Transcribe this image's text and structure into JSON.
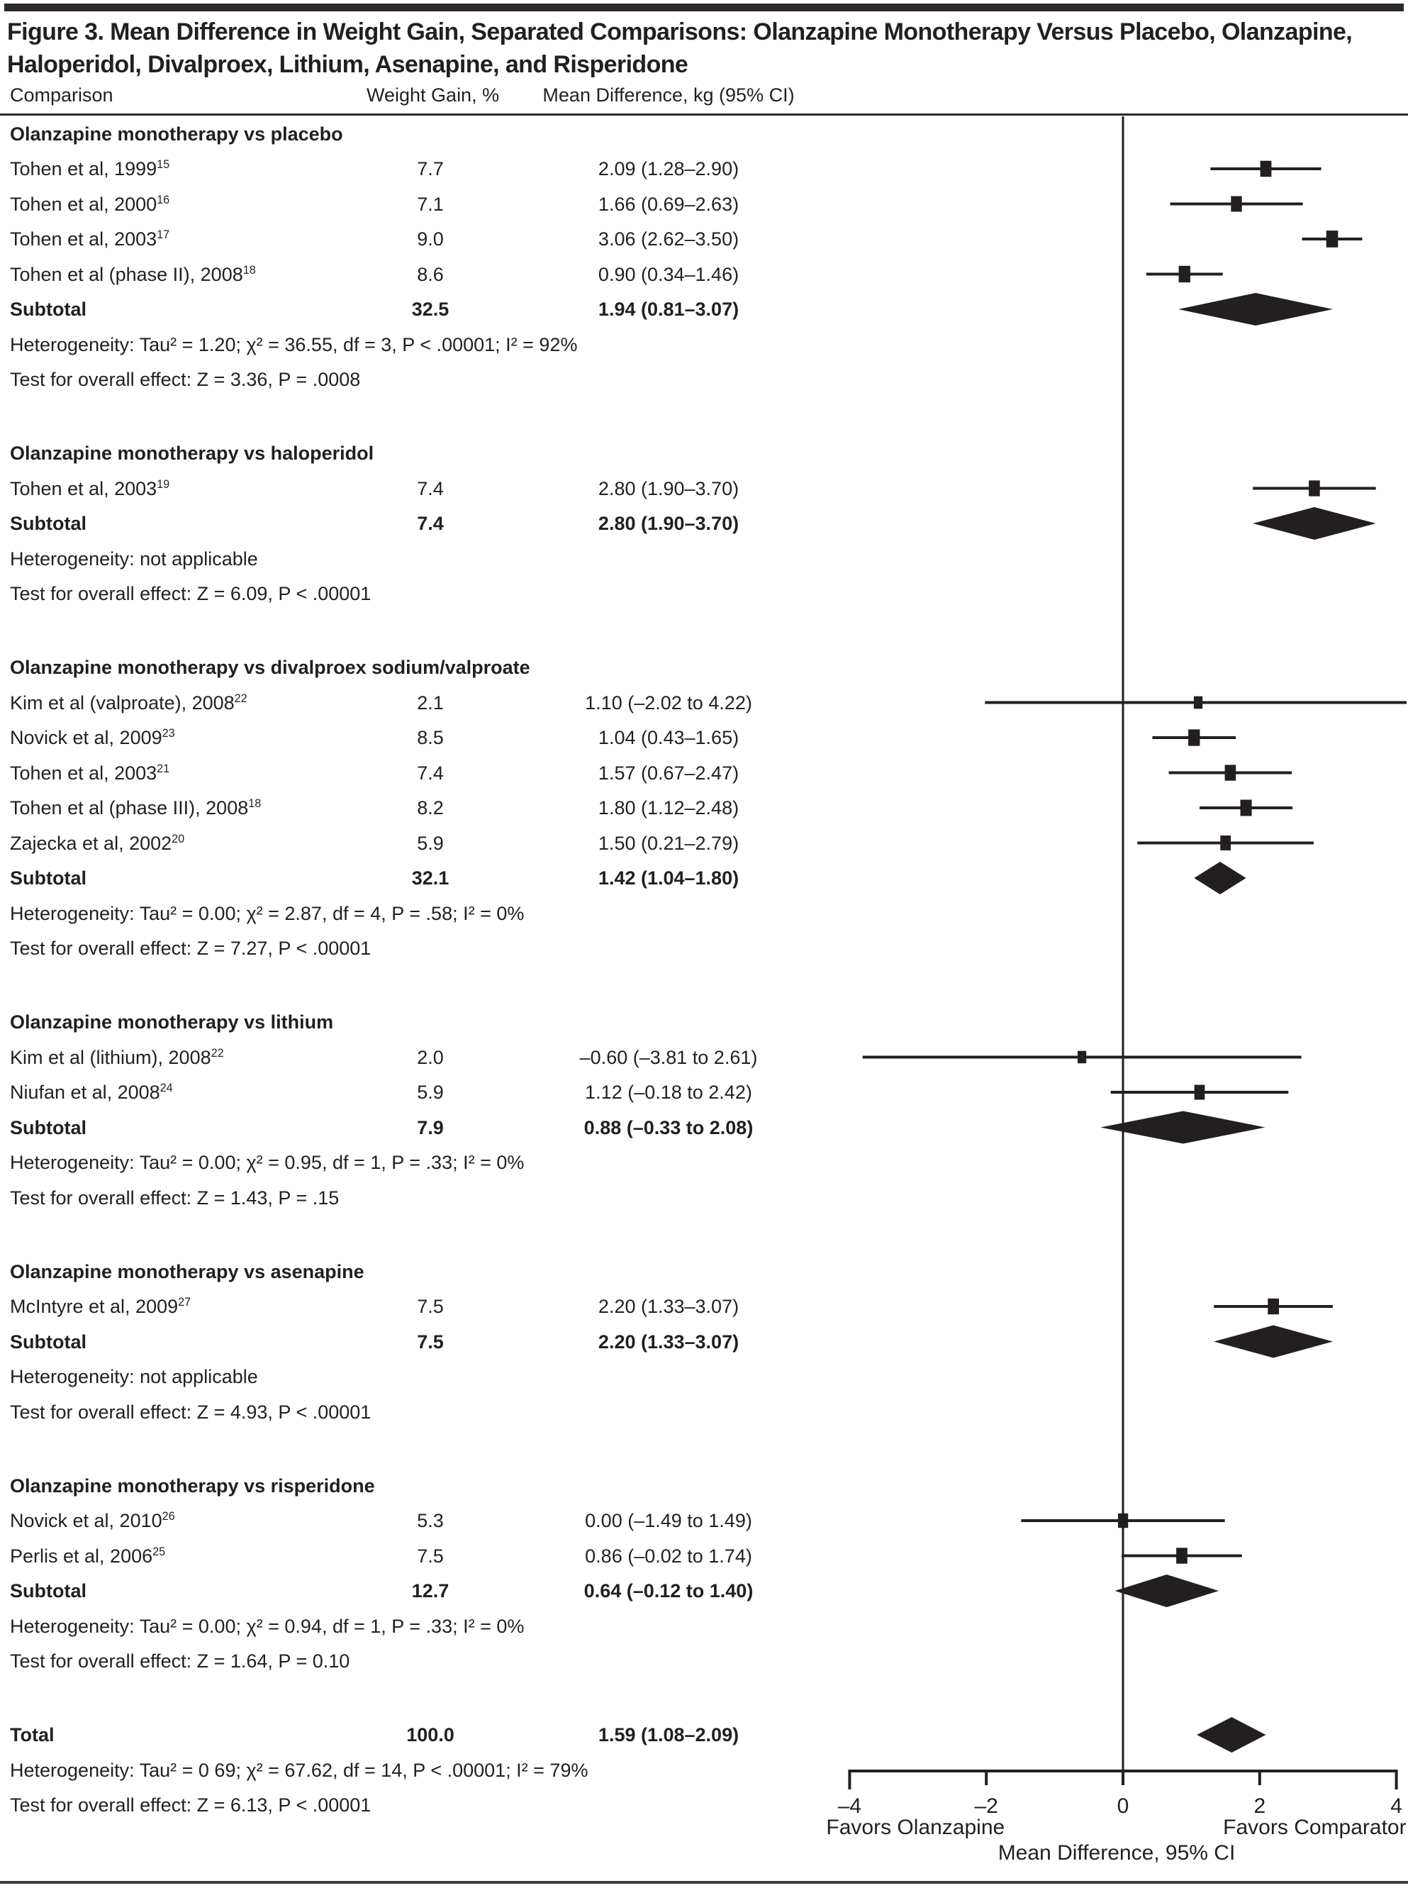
{
  "figure_title": "Figure 3. Mean Difference in Weight Gain, Separated Comparisons: Olanzapine Monotherapy Versus Placebo, Olanzapine, Haloperidol, Divalproex, Lithium, Asenapine, and Risperidone",
  "columns": {
    "comparison": "Comparison",
    "weight": "Weight Gain, %",
    "mean_diff": "Mean Difference, kg (95% CI)"
  },
  "labels": {
    "subtotal": "Subtotal",
    "total": "Total"
  },
  "colors": {
    "ink": "#231f20"
  },
  "chart_data": {
    "type": "scatter",
    "variant": "forest-plot",
    "title": "Figure 3. Mean Difference in Weight Gain, Separated Comparisons: Olanzapine Monotherapy Versus Placebo, Olanzapine, Haloperidol, Divalproex, Lithium, Asenapine, and Risperidone",
    "xlabel": "Mean Difference, 95% CI",
    "xlim": [
      -4,
      4
    ],
    "x_ticks": [
      "–4",
      "–2",
      "0",
      "2",
      "4"
    ],
    "x_tick_values": [
      -4,
      -2,
      0,
      2,
      4
    ],
    "favors_left": "Favors Olanzapine",
    "favors_right": "Favors Comparator",
    "grid": false,
    "sections": [
      {
        "header": "Olanzapine monotherapy vs placebo",
        "studies": [
          {
            "label": "Tohen et al, 1999",
            "ref": "15",
            "weight": "7.7",
            "w": 7.7,
            "ci_text": "2.09 (1.28–2.90)",
            "mean": 2.09,
            "lo": 1.28,
            "hi": 2.9
          },
          {
            "label": "Tohen et al, 2000",
            "ref": "16",
            "weight": "7.1",
            "w": 7.1,
            "ci_text": "1.66 (0.69–2.63)",
            "mean": 1.66,
            "lo": 0.69,
            "hi": 2.63
          },
          {
            "label": "Tohen et al, 2003",
            "ref": "17",
            "weight": "9.0",
            "w": 9.0,
            "ci_text": "3.06 (2.62–3.50)",
            "mean": 3.06,
            "lo": 2.62,
            "hi": 3.5
          },
          {
            "label": "Tohen et al (phase II), 2008",
            "ref": "18",
            "weight": "8.6",
            "w": 8.6,
            "ci_text": "0.90 (0.34–1.46)",
            "mean": 0.9,
            "lo": 0.34,
            "hi": 1.46
          }
        ],
        "subtotal": {
          "weight": "32.5",
          "ci_text": "1.94 (0.81–3.07)",
          "mean": 1.94,
          "lo": 0.81,
          "hi": 3.07
        },
        "heterogeneity": "Heterogeneity: Tau² = 1.20; χ² = 36.55, df = 3, P < .00001; I² = 92%",
        "test": "Test for overall effect: Z = 3.36, P = .0008"
      },
      {
        "header": "Olanzapine monotherapy vs haloperidol",
        "studies": [
          {
            "label": "Tohen et al, 2003",
            "ref": "19",
            "weight": "7.4",
            "w": 7.4,
            "ci_text": "2.80 (1.90–3.70)",
            "mean": 2.8,
            "lo": 1.9,
            "hi": 3.7
          }
        ],
        "subtotal": {
          "weight": "7.4",
          "ci_text": "2.80 (1.90–3.70)",
          "mean": 2.8,
          "lo": 1.9,
          "hi": 3.7
        },
        "heterogeneity": "Heterogeneity: not applicable",
        "test": "Test for overall effect: Z = 6.09, P < .00001"
      },
      {
        "header": "Olanzapine monotherapy vs divalproex sodium/valproate",
        "studies": [
          {
            "label": "Kim et al (valproate), 2008",
            "ref": "22",
            "weight": "2.1",
            "w": 2.1,
            "ci_text": "1.10 (–2.02 to 4.22)",
            "mean": 1.1,
            "lo": -2.02,
            "hi": 4.22
          },
          {
            "label": "Novick et al, 2009",
            "ref": "23",
            "weight": "8.5",
            "w": 8.5,
            "ci_text": "1.04 (0.43–1.65)",
            "mean": 1.04,
            "lo": 0.43,
            "hi": 1.65
          },
          {
            "label": "Tohen et al, 2003",
            "ref": "21",
            "weight": "7.4",
            "w": 7.4,
            "ci_text": "1.57 (0.67–2.47)",
            "mean": 1.57,
            "lo": 0.67,
            "hi": 2.47
          },
          {
            "label": "Tohen et al (phase III), 2008",
            "ref": "18",
            "weight": "8.2",
            "w": 8.2,
            "ci_text": "1.80 (1.12–2.48)",
            "mean": 1.8,
            "lo": 1.12,
            "hi": 2.48
          },
          {
            "label": "Zajecka et al, 2002",
            "ref": "20",
            "weight": "5.9",
            "w": 5.9,
            "ci_text": "1.50 (0.21–2.79)",
            "mean": 1.5,
            "lo": 0.21,
            "hi": 2.79
          }
        ],
        "subtotal": {
          "weight": "32.1",
          "ci_text": "1.42 (1.04–1.80)",
          "mean": 1.42,
          "lo": 1.04,
          "hi": 1.8
        },
        "heterogeneity": "Heterogeneity: Tau² = 0.00; χ² = 2.87, df = 4, P = .58; I² = 0%",
        "test": "Test for overall effect: Z = 7.27, P < .00001"
      },
      {
        "header": "Olanzapine monotherapy vs lithium",
        "studies": [
          {
            "label": "Kim et al (lithium), 2008",
            "ref": "22",
            "weight": "2.0",
            "w": 2.0,
            "ci_text": "–0.60 (–3.81 to 2.61)",
            "mean": -0.6,
            "lo": -3.81,
            "hi": 2.61
          },
          {
            "label": "Niufan et al, 2008",
            "ref": "24",
            "weight": "5.9",
            "w": 5.9,
            "ci_text": "1.12 (–0.18 to 2.42)",
            "mean": 1.12,
            "lo": -0.18,
            "hi": 2.42
          }
        ],
        "subtotal": {
          "weight": "7.9",
          "ci_text": "0.88 (–0.33 to 2.08)",
          "mean": 0.88,
          "lo": -0.33,
          "hi": 2.08
        },
        "heterogeneity": "Heterogeneity: Tau² = 0.00; χ² = 0.95, df = 1, P = .33; I² = 0%",
        "test": "Test for overall effect: Z = 1.43, P = .15"
      },
      {
        "header": "Olanzapine monotherapy vs asenapine",
        "studies": [
          {
            "label": "McIntyre et al, 2009",
            "ref": "27",
            "weight": "7.5",
            "w": 7.5,
            "ci_text": "2.20 (1.33–3.07)",
            "mean": 2.2,
            "lo": 1.33,
            "hi": 3.07
          }
        ],
        "subtotal": {
          "weight": "7.5",
          "ci_text": "2.20 (1.33–3.07)",
          "mean": 2.2,
          "lo": 1.33,
          "hi": 3.07
        },
        "heterogeneity": "Heterogeneity: not applicable",
        "test": "Test for overall effect: Z = 4.93, P < .00001"
      },
      {
        "header": "Olanzapine monotherapy vs risperidone",
        "studies": [
          {
            "label": "Novick et al, 2010",
            "ref": "26",
            "weight": "5.3",
            "w": 5.3,
            "ci_text": "0.00 (–1.49 to 1.49)",
            "mean": 0.0,
            "lo": -1.49,
            "hi": 1.49
          },
          {
            "label": "Perlis et al, 2006",
            "ref": "25",
            "weight": "7.5",
            "w": 7.5,
            "ci_text": "0.86 (–0.02 to 1.74)",
            "mean": 0.86,
            "lo": -0.02,
            "hi": 1.74
          }
        ],
        "subtotal": {
          "weight": "12.7",
          "ci_text": "0.64 (–0.12 to 1.40)",
          "mean": 0.64,
          "lo": -0.12,
          "hi": 1.4
        },
        "heterogeneity": "Heterogeneity: Tau² = 0.00; χ² = 0.94, df = 1, P = .33; I² = 0%",
        "test": "Test for overall effect: Z = 1.64, P = 0.10"
      }
    ],
    "total": {
      "weight": "100.0",
      "ci_text": "1.59 (1.08–2.09)",
      "mean": 1.59,
      "lo": 1.08,
      "hi": 2.09,
      "heterogeneity": "Heterogeneity: Tau² = 0 69; χ² = 67.62, df = 14, P < .00001; I² = 79%",
      "test": "Test for overall effect: Z = 6.13, P < .00001"
    }
  }
}
